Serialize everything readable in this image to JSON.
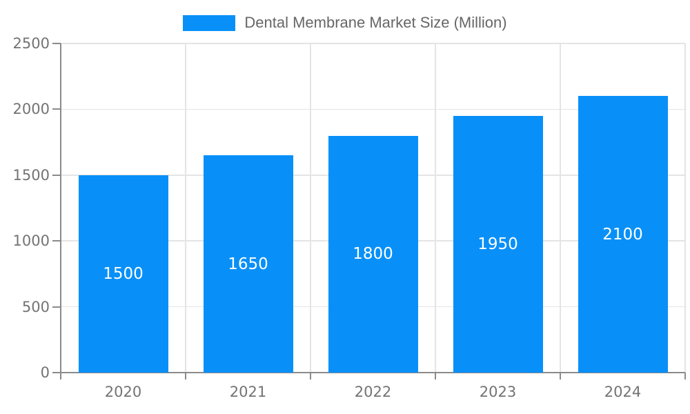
{
  "legend": {
    "label": "Dental Membrane Market Size (Million)"
  },
  "chart_data": {
    "type": "bar",
    "title": "Dental Membrane Market Size (Million)",
    "categories": [
      "2020",
      "2021",
      "2022",
      "2023",
      "2024"
    ],
    "values": [
      1500,
      1650,
      1800,
      1950,
      2100
    ],
    "bar_labels": [
      "1500",
      "1650",
      "1800",
      "1950",
      "2100"
    ],
    "xlabel": "",
    "ylabel": "",
    "ylim": [
      0,
      2500
    ],
    "yticks": [
      0,
      500,
      1000,
      1500,
      2000,
      2500
    ],
    "grid": true,
    "legend_position": "top-center",
    "colors": {
      "bar": "#0890F8",
      "grid": "#E4E4E4",
      "axis": "#8A8A8A",
      "tick_label": "#737373",
      "bar_label": "#FFFFFF",
      "legend_text": "#666666",
      "background": "#FFFFFF"
    }
  }
}
